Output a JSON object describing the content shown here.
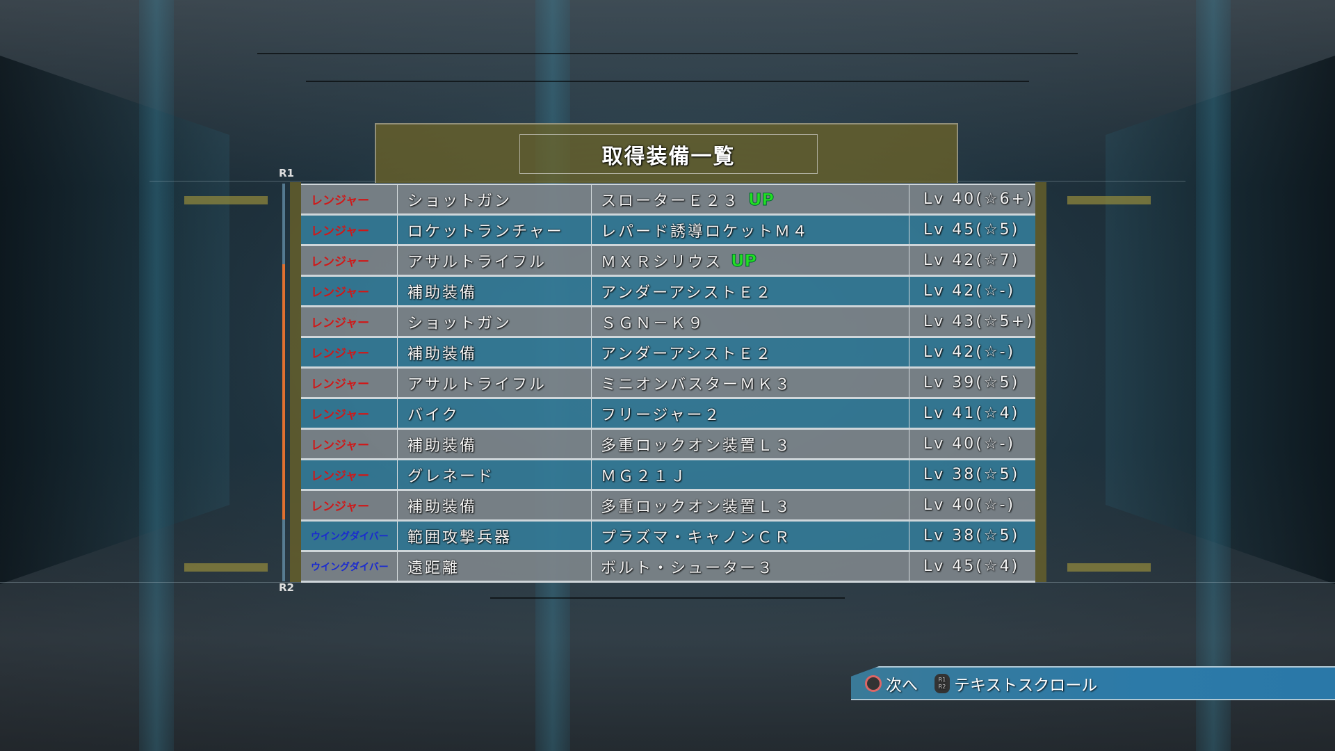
{
  "title": "取得装備一覧",
  "scroll": {
    "top_label": "R1",
    "bottom_label": "R2"
  },
  "rows": [
    {
      "cls": "レンジャー",
      "cls_color": "red",
      "category": "ショットガン",
      "weapon": "スローターＥ２３",
      "up": "UP",
      "level": "Lv 40(☆6+)"
    },
    {
      "cls": "レンジャー",
      "cls_color": "red",
      "category": "ロケットランチャー",
      "weapon": "レパード誘導ロケットＭ４",
      "up": "",
      "level": "Lv 45(☆5)"
    },
    {
      "cls": "レンジャー",
      "cls_color": "red",
      "category": "アサルトライフル",
      "weapon": "ＭＸＲシリウス",
      "up": "UP",
      "level": "Lv 42(☆7)"
    },
    {
      "cls": "レンジャー",
      "cls_color": "red",
      "category": "補助装備",
      "weapon": "アンダーアシストＥ２",
      "up": "",
      "level": "Lv 42(☆-)"
    },
    {
      "cls": "レンジャー",
      "cls_color": "red",
      "category": "ショットガン",
      "weapon": "ＳＧＮ－Ｋ９",
      "up": "",
      "level": "Lv 43(☆5+)"
    },
    {
      "cls": "レンジャー",
      "cls_color": "red",
      "category": "補助装備",
      "weapon": "アンダーアシストＥ２",
      "up": "",
      "level": "Lv 42(☆-)"
    },
    {
      "cls": "レンジャー",
      "cls_color": "red",
      "category": "アサルトライフル",
      "weapon": "ミニオンバスターＭＫ３",
      "up": "",
      "level": "Lv 39(☆5)"
    },
    {
      "cls": "レンジャー",
      "cls_color": "red",
      "category": "バイク",
      "weapon": "フリージャー２",
      "up": "",
      "level": "Lv 41(☆4)"
    },
    {
      "cls": "レンジャー",
      "cls_color": "red",
      "category": "補助装備",
      "weapon": "多重ロックオン装置Ｌ３",
      "up": "",
      "level": "Lv 40(☆-)"
    },
    {
      "cls": "レンジャー",
      "cls_color": "red",
      "category": "グレネード",
      "weapon": "ＭＧ２１Ｊ",
      "up": "",
      "level": "Lv 38(☆5)"
    },
    {
      "cls": "レンジャー",
      "cls_color": "red",
      "category": "補助装備",
      "weapon": "多重ロックオン装置Ｌ３",
      "up": "",
      "level": "Lv 40(☆-)"
    },
    {
      "cls": "ウイングダイバー",
      "cls_color": "blue",
      "category": "範囲攻撃兵器",
      "weapon": "プラズマ・キャノンＣＲ",
      "up": "",
      "level": "Lv 38(☆5)"
    },
    {
      "cls": "ウイングダイバー",
      "cls_color": "blue",
      "category": "遠距離",
      "weapon": "ボルト・シューター３",
      "up": "",
      "level": "Lv 45(☆4)"
    }
  ],
  "footer": {
    "next_icon": "circle-button-icon",
    "next_label": "次へ",
    "scroll_icon": "r1-r2-button-icon",
    "scroll_icon_top": "R1",
    "scroll_icon_bottom": "R2",
    "scroll_label": "テキストスクロール"
  },
  "colors": {
    "ranger": "#d01818",
    "wing_diver": "#1a2ad0",
    "up": "#22e022",
    "row_gray": "#7d848a",
    "row_blue": "#347a96",
    "footer_bar": "#2c7aa8"
  }
}
